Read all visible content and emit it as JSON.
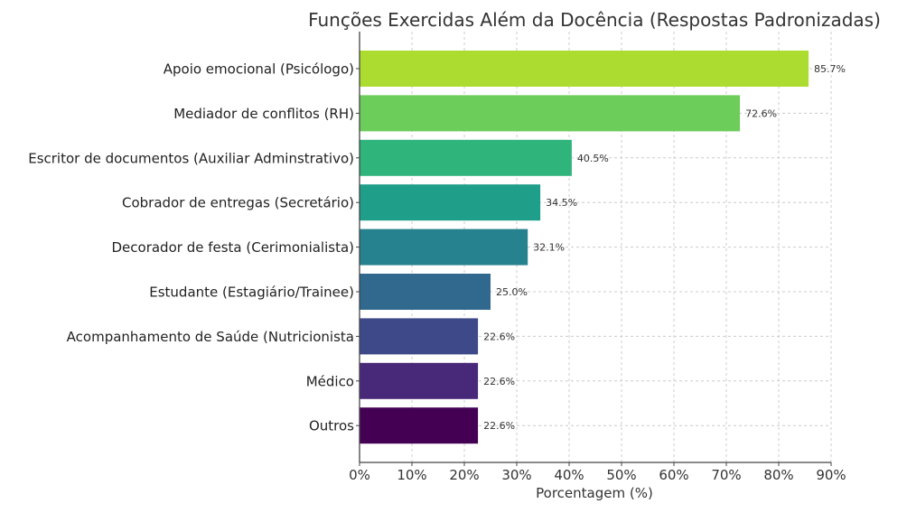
{
  "chart_data": {
    "type": "bar",
    "orientation": "horizontal",
    "title": "Funções Exercidas Além da Docência (Respostas Padronizadas)",
    "xlabel": "Porcentagem (%)",
    "ylabel": "",
    "xlim": [
      0,
      90
    ],
    "xticks": [
      0,
      10,
      20,
      30,
      40,
      50,
      60,
      70,
      80,
      90
    ],
    "xtick_labels": [
      "0%",
      "10%",
      "20%",
      "30%",
      "40%",
      "50%",
      "60%",
      "70%",
      "80%",
      "90%"
    ],
    "grid": true,
    "categories": [
      "Apoio emocional (Psicólogo)",
      "Mediador de conflitos (RH)",
      "Escritor de documentos (Auxiliar Adminstrativo)",
      "Cobrador de entregas (Secretário)",
      "Decorador de festa (Cerimonialista)",
      "Estudante (Estagiário/Trainee)",
      "Acompanhamento de Saúde (Nutricionista",
      "Médico",
      "Outros"
    ],
    "values": [
      85.7,
      72.6,
      40.5,
      34.5,
      32.1,
      25.0,
      22.6,
      22.6,
      22.6
    ],
    "value_labels": [
      "85.7%",
      "72.6%",
      "40.5%",
      "34.5%",
      "32.1%",
      "25.0%",
      "22.6%",
      "22.6%",
      "22.6%"
    ],
    "colors": [
      "#addc30",
      "#6ccd5a",
      "#2fb47c",
      "#1f9e89",
      "#26828e",
      "#31688e",
      "#3e4989",
      "#482878",
      "#440154"
    ]
  }
}
